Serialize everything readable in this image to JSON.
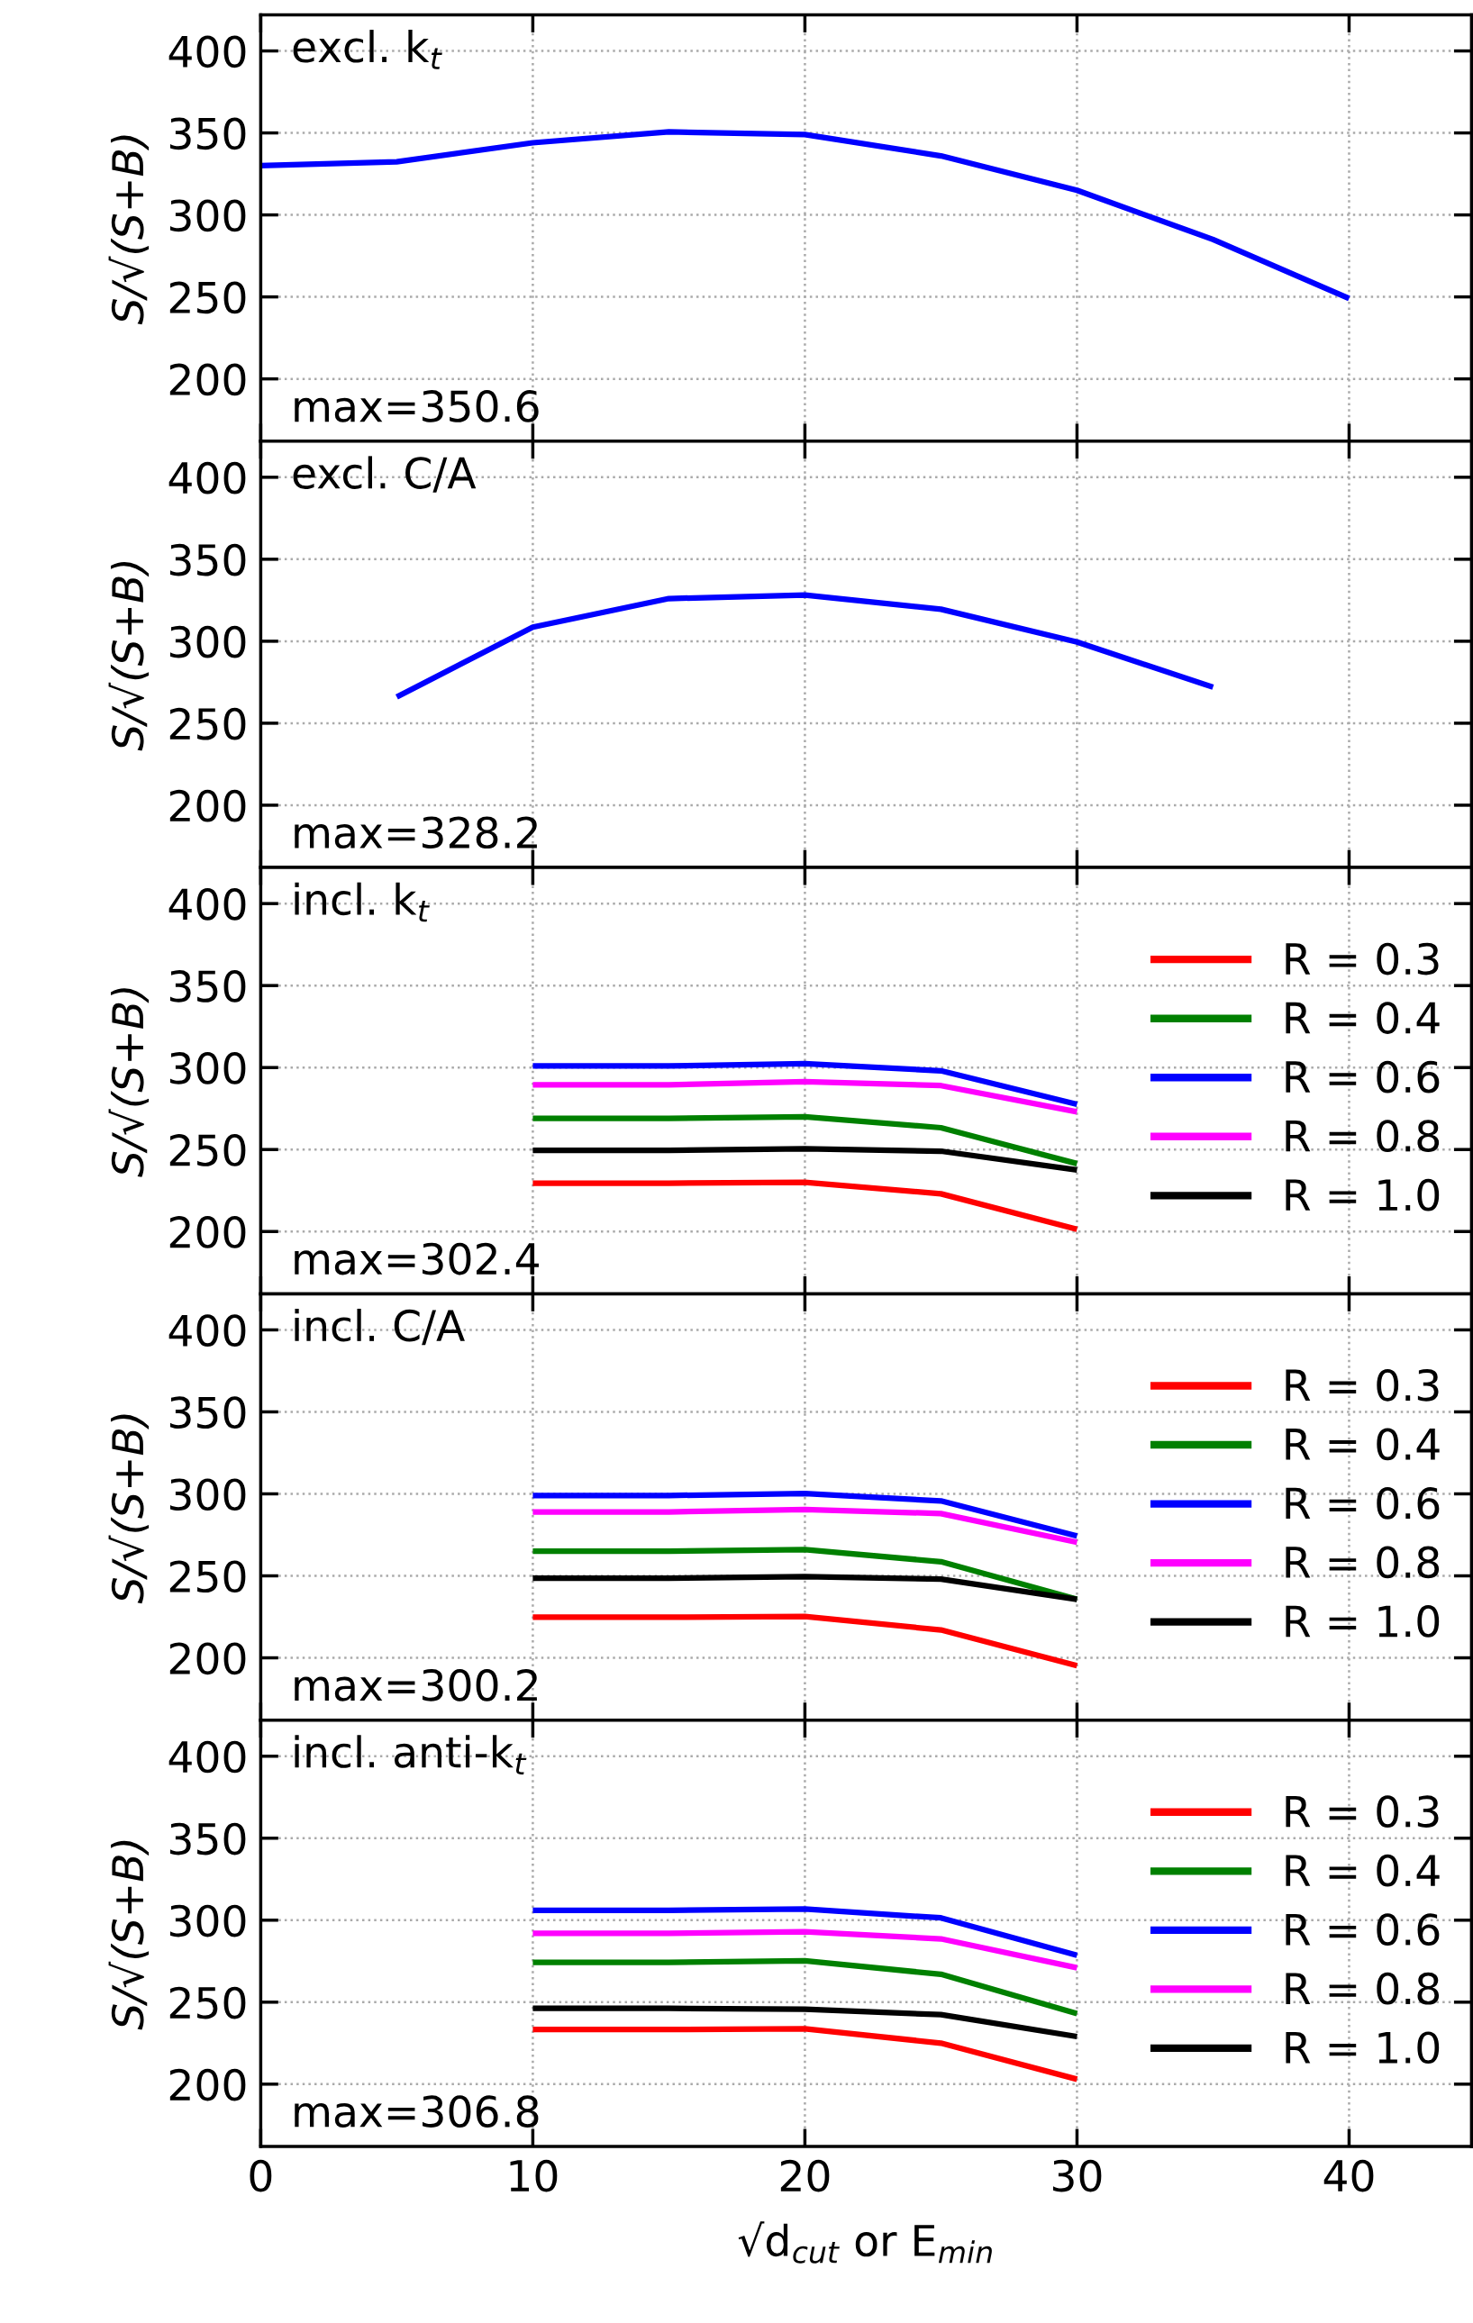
{
  "chart_data": [
    {
      "type": "line",
      "ylabel": "S/√(S+B)",
      "annotations": [
        "excl. k$_{t}$",
        "max=350.6"
      ],
      "xlim": [
        0,
        44.5
      ],
      "xticks": [
        0,
        10,
        20,
        30,
        40
      ],
      "ylim": [
        162,
        422
      ],
      "yticks": [
        200,
        250,
        300,
        350,
        400
      ],
      "grid": true,
      "tick_labels": "y",
      "line_style": "solid",
      "x": [
        0,
        5,
        10,
        15,
        20,
        25,
        30,
        35,
        40
      ],
      "series": [
        {
          "color": "#0000ff",
          "values": [
            330,
            332.4,
            344,
            350.6,
            349,
            336,
            315,
            285,
            249
          ]
        }
      ]
    },
    {
      "type": "line",
      "ylabel": "S/√(S+B)",
      "annotations": [
        "excl. C/A",
        "max=328.2"
      ],
      "xlim": [
        0,
        44.5
      ],
      "xticks": [
        0,
        10,
        20,
        30,
        40
      ],
      "ylim": [
        162,
        422
      ],
      "yticks": [
        200,
        250,
        300,
        350,
        400
      ],
      "grid": true,
      "tick_labels": "y",
      "line_style": "solid",
      "x": [
        5,
        10,
        15,
        20,
        25,
        30,
        35
      ],
      "series": [
        {
          "color": "#0000ff",
          "values": [
            266,
            308.6,
            326,
            328.2,
            319.5,
            299.5,
            272
          ]
        }
      ]
    },
    {
      "type": "line",
      "ylabel": "S/√(S+B)",
      "annotations": [
        "incl. k$_{t}$",
        "max=302.4"
      ],
      "xlim": [
        0,
        44.5
      ],
      "xticks": [
        0,
        10,
        20,
        30,
        40
      ],
      "ylim": [
        162,
        422
      ],
      "yticks": [
        200,
        250,
        300,
        350,
        400
      ],
      "grid": true,
      "tick_labels": "y",
      "legend": "right",
      "line_style": "solid",
      "x": [
        10,
        15,
        20,
        25,
        30
      ],
      "series": [
        {
          "name": "R = 0.3",
          "color": "#ff0000",
          "values": [
            229.5,
            229.5,
            230,
            223,
            201.4
          ]
        },
        {
          "name": "R = 0.4",
          "color": "#008000",
          "values": [
            269,
            269,
            270,
            263.3,
            241.4
          ]
        },
        {
          "name": "R = 0.6",
          "color": "#0000ff",
          "values": [
            301,
            301,
            302.4,
            298,
            277.6
          ]
        },
        {
          "name": "R = 0.8",
          "color": "#ff00ff",
          "values": [
            289.5,
            289.5,
            291.4,
            289,
            273
          ]
        },
        {
          "name": "R = 1.0",
          "color": "#000000",
          "values": [
            249.5,
            249.5,
            250.5,
            249,
            237.6
          ]
        }
      ]
    },
    {
      "type": "line",
      "ylabel": "S/√(S+B)",
      "annotations": [
        "incl. C/A",
        "max=300.2"
      ],
      "xlim": [
        0,
        44.5
      ],
      "xticks": [
        0,
        10,
        20,
        30,
        40
      ],
      "ylim": [
        162,
        422
      ],
      "yticks": [
        200,
        250,
        300,
        350,
        400
      ],
      "grid": true,
      "tick_labels": "y",
      "legend": "right",
      "line_style": "solid",
      "x": [
        10,
        15,
        20,
        25,
        30
      ],
      "series": [
        {
          "name": "R = 0.3",
          "color": "#ff0000",
          "values": [
            224.8,
            224.8,
            225.2,
            217,
            195.2
          ]
        },
        {
          "name": "R = 0.4",
          "color": "#008000",
          "values": [
            265,
            265,
            266,
            258.6,
            235.7
          ]
        },
        {
          "name": "R = 0.6",
          "color": "#0000ff",
          "values": [
            299,
            299,
            300.2,
            295.7,
            274.3
          ]
        },
        {
          "name": "R = 0.8",
          "color": "#ff00ff",
          "values": [
            289,
            289,
            290.5,
            288,
            270.5
          ]
        },
        {
          "name": "R = 1.0",
          "color": "#000000",
          "values": [
            248.6,
            248.6,
            249.5,
            248,
            235.7
          ]
        }
      ]
    },
    {
      "type": "line",
      "ylabel": "S/√(S+B)",
      "xlabel": "√d$_{cut}$ or E$_{min}$",
      "annotations": [
        "incl. anti-k$_{t}$",
        "max=306.8"
      ],
      "xlim": [
        0,
        44.5
      ],
      "xticks": [
        0,
        10,
        20,
        30,
        40
      ],
      "ylim": [
        162,
        422
      ],
      "yticks": [
        200,
        250,
        300,
        350,
        400
      ],
      "grid": true,
      "legend": "right",
      "line_style": "solid",
      "x": [
        10,
        15,
        20,
        25,
        30
      ],
      "series": [
        {
          "name": "R = 0.3",
          "color": "#ff0000",
          "values": [
            233.3,
            233.3,
            233.8,
            225,
            203
          ]
        },
        {
          "name": "R = 0.4",
          "color": "#008000",
          "values": [
            274.3,
            274.3,
            275.2,
            267,
            243
          ]
        },
        {
          "name": "R = 0.6",
          "color": "#0000ff",
          "values": [
            306,
            306,
            306.8,
            301.4,
            278.6
          ]
        },
        {
          "name": "R = 0.8",
          "color": "#ff00ff",
          "values": [
            292,
            292,
            293,
            288.6,
            271
          ]
        },
        {
          "name": "R = 1.0",
          "color": "#000000",
          "values": [
            246.2,
            246.2,
            245.7,
            242.4,
            229
          ]
        }
      ]
    }
  ]
}
